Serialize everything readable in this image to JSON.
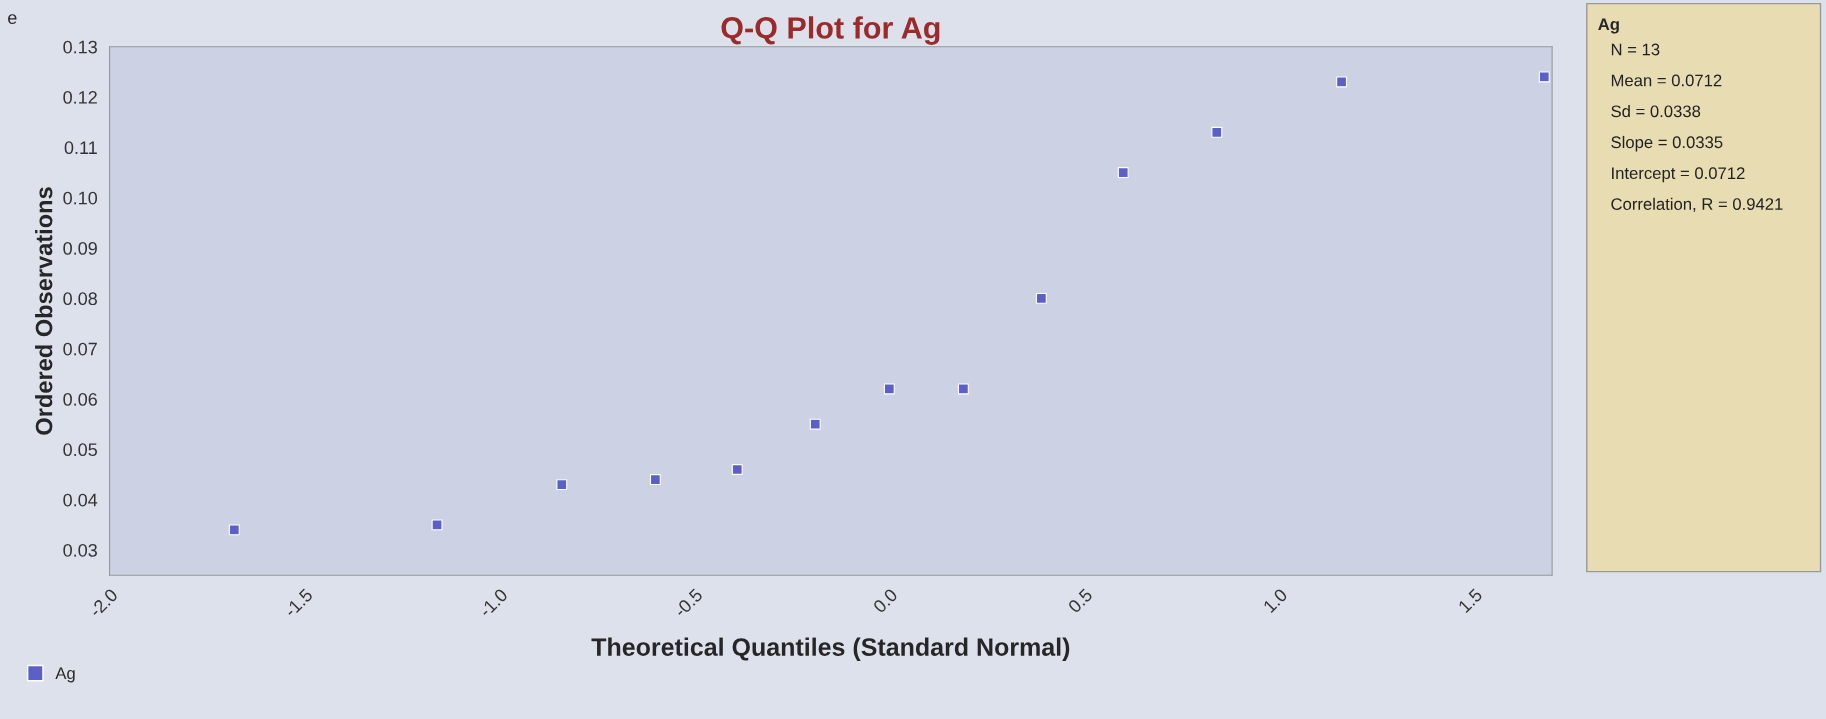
{
  "chart_data": {
    "type": "scatter",
    "title": "Q-Q Plot for Ag",
    "xlabel": "Theoretical Quantiles (Standard Normal)",
    "ylabel": "Ordered Observations",
    "x": [
      -1.68,
      -1.16,
      -0.84,
      -0.6,
      -0.39,
      -0.19,
      0.0,
      0.19,
      0.39,
      0.6,
      0.84,
      1.16,
      1.68
    ],
    "series": [
      {
        "name": "Ag",
        "color": "#5b5fc7",
        "values": [
          0.034,
          0.035,
          0.043,
          0.044,
          0.046,
          0.055,
          0.062,
          0.062,
          0.08,
          0.105,
          0.113,
          0.123,
          0.124
        ]
      }
    ],
    "xlim": [
      -2.0,
      1.7
    ],
    "xticks": [
      {
        "value": -2.0,
        "label": "-2.0"
      },
      -1.5,
      {
        "value": -1.0,
        "label": "-1.0"
      },
      -0.5,
      {
        "value": 0.0,
        "label": "0.0"
      },
      0.5,
      {
        "value": 1.0,
        "label": "1.0"
      },
      1.5
    ],
    "ylim": [
      0.025,
      0.13
    ],
    "yticks": [
      0.03,
      {
        "value": 0.04,
        "label": "0.04"
      },
      0.05,
      0.06,
      0.07,
      0.08,
      0.09,
      {
        "value": 0.1,
        "label": "0.10"
      },
      0.11,
      0.12,
      0.13
    ],
    "marker": "square",
    "legend": "bottom left",
    "grid": false,
    "annotations": [
      "e",
      "Ag",
      "N = 13",
      "Mean = 0.0712",
      "Sd = 0.0338",
      "Slope = 0.0335",
      "Intercept = 0.0712",
      "Correlation, R = 0.9421"
    ]
  }
}
